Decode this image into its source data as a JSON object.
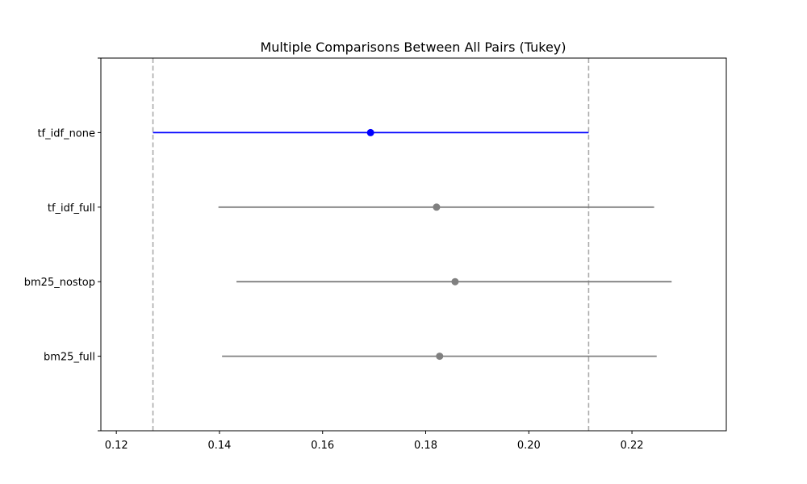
{
  "chart_data": {
    "type": "scatter",
    "title": "Multiple Comparisons Between All Pairs (Tukey)",
    "xlabel": "",
    "ylabel": "",
    "xlim": [
      0.117,
      0.2383
    ],
    "x_ticks": [
      0.12,
      0.14,
      0.16,
      0.18,
      0.2,
      0.22
    ],
    "x_tick_labels": [
      "0.12",
      "0.14",
      "0.16",
      "0.18",
      "0.20",
      "0.22"
    ],
    "categories": [
      "tf_idf_none",
      "tf_idf_full",
      "bm25_nostop",
      "bm25_full"
    ],
    "series": [
      {
        "category": "tf_idf_none",
        "mean": 0.1693,
        "lower": 0.1271,
        "upper": 0.2116,
        "highlighted": true
      },
      {
        "category": "tf_idf_full",
        "mean": 0.1821,
        "lower": 0.1398,
        "upper": 0.2243,
        "highlighted": false
      },
      {
        "category": "bm25_nostop",
        "mean": 0.1857,
        "lower": 0.1433,
        "upper": 0.2277,
        "highlighted": false
      },
      {
        "category": "bm25_full",
        "mean": 0.1827,
        "lower": 0.1405,
        "upper": 0.2248,
        "highlighted": false
      }
    ],
    "reference_lines": [
      0.1271,
      0.2116
    ],
    "grid": false,
    "colors": {
      "highlight": "#0000ff",
      "other": "#808080",
      "reference": "#aaaaaa",
      "axes": "#000000"
    }
  }
}
